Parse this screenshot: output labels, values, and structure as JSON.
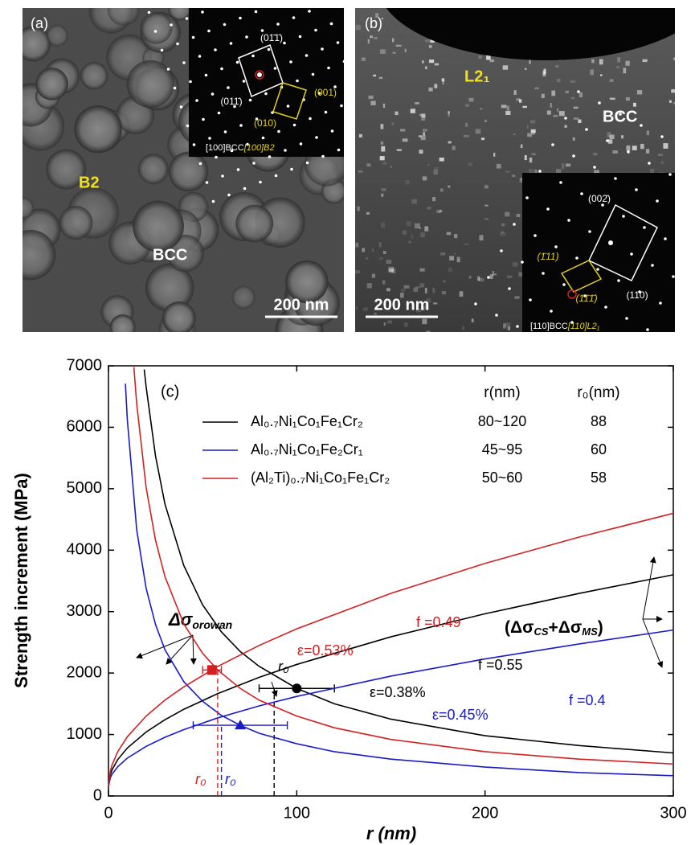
{
  "panels": [
    {
      "label": "(a)",
      "phases": [
        "B2",
        "BCC"
      ],
      "scale_bar": "200 nm",
      "inset": {
        "indices": [
          "(01̄1̄)",
          "(011̄)",
          "(001)",
          "(010)"
        ],
        "zone_axis": [
          "[100]BCC",
          "[100]B2"
        ]
      }
    },
    {
      "label": "(b)",
      "phases": [
        "L2₁",
        "BCC"
      ],
      "scale_bar": "200 nm",
      "inset": {
        "indices": [
          "(002̄)",
          "(1̄11)",
          "(11̄1̄)",
          "(110)"
        ],
        "zone_axis": [
          "[110]BCC",
          "[110]L2₁"
        ]
      }
    }
  ],
  "chart_data": {
    "type": "line",
    "label": "(c)",
    "x_label": "r (nm)",
    "y_label": "Strength increment (MPa)",
    "xlim": [
      0,
      300
    ],
    "xticks": [
      0,
      100,
      200,
      300
    ],
    "ylim": [
      0,
      7000
    ],
    "yticks": [
      0,
      1000,
      2000,
      3000,
      4000,
      5000,
      6000,
      7000
    ],
    "table_headers": [
      "r(nm)",
      "r₀(nm)"
    ],
    "series": [
      {
        "name": "Al₀.₇Ni₁Co₁Fe₁Cr₂",
        "color": "#000000",
        "r_range": "80~120",
        "r0": 88,
        "point": {
          "x": 100,
          "y": 1750,
          "xmin": 80,
          "xmax": 120
        },
        "marker": "circle",
        "orowan": {
          "x": [
            19,
            20,
            25,
            30,
            40,
            50,
            60,
            70,
            80,
            100,
            120,
            150,
            200,
            250,
            300
          ],
          "values": [
            6940,
            6660,
            5530,
            4750,
            3750,
            3110,
            2670,
            2350,
            2110,
            1750,
            1500,
            1250,
            980,
            820,
            700
          ]
        },
        "cs_ms": {
          "x": [
            0,
            1,
            2,
            5,
            10,
            20,
            30,
            40,
            58,
            80,
            100,
            150,
            200,
            250,
            300
          ],
          "values": [
            150,
            349,
            431,
            595,
            780,
            1040,
            1240,
            1410,
            1665,
            1930,
            2140,
            2590,
            2965,
            3296,
            3600
          ]
        },
        "f_label": "f =0.55",
        "strain_label": "ε=0.38%"
      },
      {
        "name": "Al₀.₇Ni₁Co₁Fe₂Cr₁",
        "color": "#1a1ac8",
        "r_range": "45~95",
        "r0": 60,
        "point": {
          "x": 70,
          "y": 1150,
          "xmin": 45,
          "xmax": 95
        },
        "marker": "triangle",
        "orowan": {
          "x": [
            9,
            10,
            15,
            20,
            25,
            30,
            40,
            50,
            60,
            70,
            80,
            100,
            120,
            150,
            200,
            250,
            300
          ],
          "values": [
            6710,
            6130,
            4330,
            3380,
            2790,
            2380,
            1860,
            1540,
            1310,
            1150,
            1020,
            850,
            720,
            600,
            470,
            380,
            330
          ]
        },
        "cs_ms": {
          "x": [
            0,
            1,
            2,
            5,
            10,
            20,
            30,
            40,
            58,
            80,
            100,
            150,
            200,
            250,
            300
          ],
          "values": [
            150,
            297,
            358,
            479,
            615,
            807,
            955,
            1080,
            1270,
            1465,
            1620,
            1950,
            2230,
            2474,
            2700
          ]
        },
        "f_label": "f =0.4",
        "strain_label": "ε=0.45%"
      },
      {
        "name": "(Al₂Ti)₀.₇Ni₁Co₁Fe₁Cr₂",
        "color": "#d42020",
        "r_range": "50~60",
        "r0": 58,
        "point": {
          "x": 55,
          "y": 2050,
          "xmin": 50,
          "xmax": 60
        },
        "marker": "square",
        "orowan": {
          "x": [
            13.5,
            15,
            20,
            25,
            30,
            40,
            50,
            58,
            70,
            80,
            100,
            120,
            150,
            200,
            250,
            300
          ],
          "values": [
            6980,
            6380,
            5020,
            4160,
            3570,
            2800,
            2320,
            2050,
            1750,
            1560,
            1300,
            1110,
            920,
            720,
            600,
            520
          ]
        },
        "cs_ms": {
          "x": [
            0,
            1,
            2,
            5,
            10,
            20,
            30,
            40,
            58,
            80,
            100,
            150,
            200,
            250,
            300
          ],
          "values": [
            150,
            407,
            513,
            725,
            963,
            1300,
            1560,
            1775,
            2107,
            2449,
            2720,
            3297,
            3785,
            4213,
            4600
          ]
        },
        "f_label": "f =0.49",
        "strain_label": "ε=0.53%"
      }
    ],
    "annotations": {
      "orowan": {
        "text": "Δσ",
        "sub": "orowan"
      },
      "cs_ms": {
        "open": "(Δσ",
        "sub1": "CS",
        "plus": "+Δσ",
        "sub2": "MS",
        "close": ")"
      },
      "r0_black": "r₀",
      "r0_red": "r₀",
      "r0_blue": "r₀"
    }
  }
}
